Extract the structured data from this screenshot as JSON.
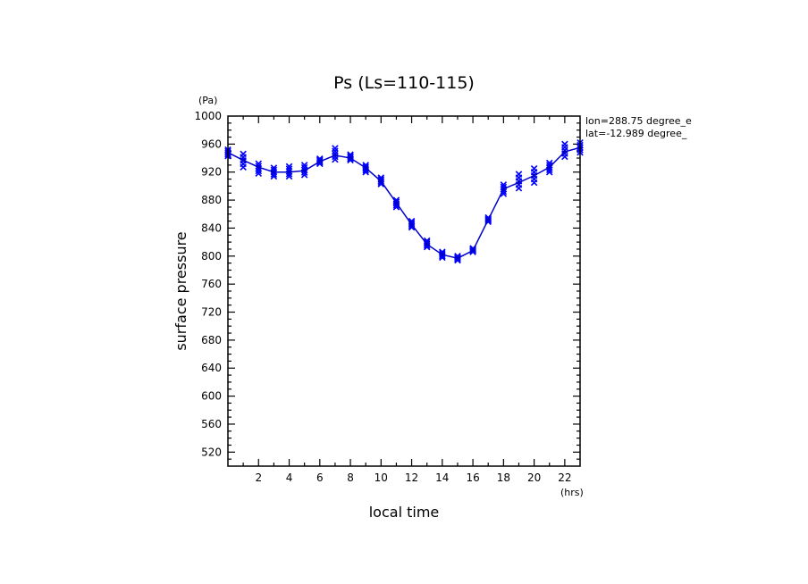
{
  "chart_data": {
    "type": "line",
    "title": "Ps (Ls=110-115)",
    "xlabel": "local time",
    "ylabel": "surface pressure",
    "x_unit": "(hrs)",
    "y_unit": "(Pa)",
    "xlim": [
      0,
      23
    ],
    "ylim": [
      500,
      1000
    ],
    "x_ticks": [
      2,
      4,
      6,
      8,
      10,
      12,
      14,
      16,
      18,
      20,
      22
    ],
    "y_ticks": [
      520,
      560,
      600,
      640,
      680,
      720,
      760,
      800,
      840,
      880,
      920,
      960,
      1000
    ],
    "grid": false,
    "annotations": [
      "lon=288.75 degree_e",
      "lat=-12.989 degree_"
    ],
    "line_color": "#0000cc",
    "marker_color": "#0000ff",
    "series": [
      {
        "x": [
          0,
          1,
          2,
          3,
          4,
          5,
          6,
          7,
          8,
          9,
          10,
          11,
          12,
          13,
          14,
          15,
          16,
          17,
          18,
          19,
          20,
          21,
          22,
          23
        ],
        "values": [
          948,
          937,
          927,
          920,
          920,
          922,
          935,
          944,
          940,
          926,
          907,
          876,
          845,
          817,
          802,
          797,
          808,
          852,
          896,
          905,
          915,
          927,
          949,
          955
        ],
        "scatter": [
          [
            943,
            952
          ],
          [
            927,
            946
          ],
          [
            918,
            932
          ],
          [
            914,
            926
          ],
          [
            914,
            928
          ],
          [
            916,
            930
          ],
          [
            932,
            939
          ],
          [
            938,
            954
          ],
          [
            937,
            945
          ],
          [
            920,
            930
          ],
          [
            903,
            912
          ],
          [
            870,
            880
          ],
          [
            841,
            850
          ],
          [
            813,
            822
          ],
          [
            798,
            806
          ],
          [
            794,
            800
          ],
          [
            806,
            811
          ],
          [
            849,
            855
          ],
          [
            889,
            902
          ],
          [
            897,
            917
          ],
          [
            905,
            925
          ],
          [
            920,
            933
          ],
          [
            942,
            960
          ],
          [
            948,
            962
          ]
        ]
      }
    ]
  }
}
